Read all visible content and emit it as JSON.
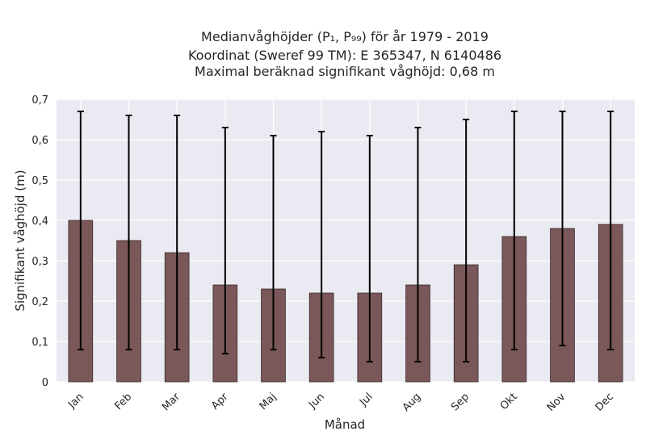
{
  "chart_data": {
    "type": "bar",
    "title_lines": [
      "Medianvåghöjder (P₁, P₉₉) för år 1979 - 2019",
      "Koordinat (Sweref 99 TM): E 365347, N 6140486",
      "Maximal beräknad signifikant våghöjd: 0,68 m"
    ],
    "xlabel": "Månad",
    "ylabel": "Signifikant våghöjd (m)",
    "categories": [
      "Jan",
      "Feb",
      "Mar",
      "Apr",
      "Maj",
      "Jun",
      "Jul",
      "Aug",
      "Sep",
      "Okt",
      "Nov",
      "Dec"
    ],
    "values": [
      0.4,
      0.35,
      0.32,
      0.24,
      0.23,
      0.22,
      0.22,
      0.24,
      0.29,
      0.36,
      0.38,
      0.39
    ],
    "p1": [
      0.08,
      0.08,
      0.08,
      0.07,
      0.08,
      0.06,
      0.05,
      0.05,
      0.05,
      0.08,
      0.09,
      0.08
    ],
    "p99": [
      0.67,
      0.66,
      0.66,
      0.63,
      0.61,
      0.62,
      0.61,
      0.63,
      0.65,
      0.67,
      0.67,
      0.67
    ],
    "ylim": [
      0,
      0.7
    ],
    "yticks": [
      0,
      0.1,
      0.2,
      0.3,
      0.4,
      0.5,
      0.6,
      0.7
    ],
    "ytick_labels": [
      "0",
      "0,1",
      "0,2",
      "0,3",
      "0,4",
      "0,5",
      "0,6",
      "0,7"
    ],
    "grid": true,
    "colors": {
      "background": "#eaeaf2",
      "bar_fill": "#7a5759",
      "bar_edge": "#3a2a2b",
      "errorbar": "#000000",
      "grid": "#ffffff"
    }
  }
}
